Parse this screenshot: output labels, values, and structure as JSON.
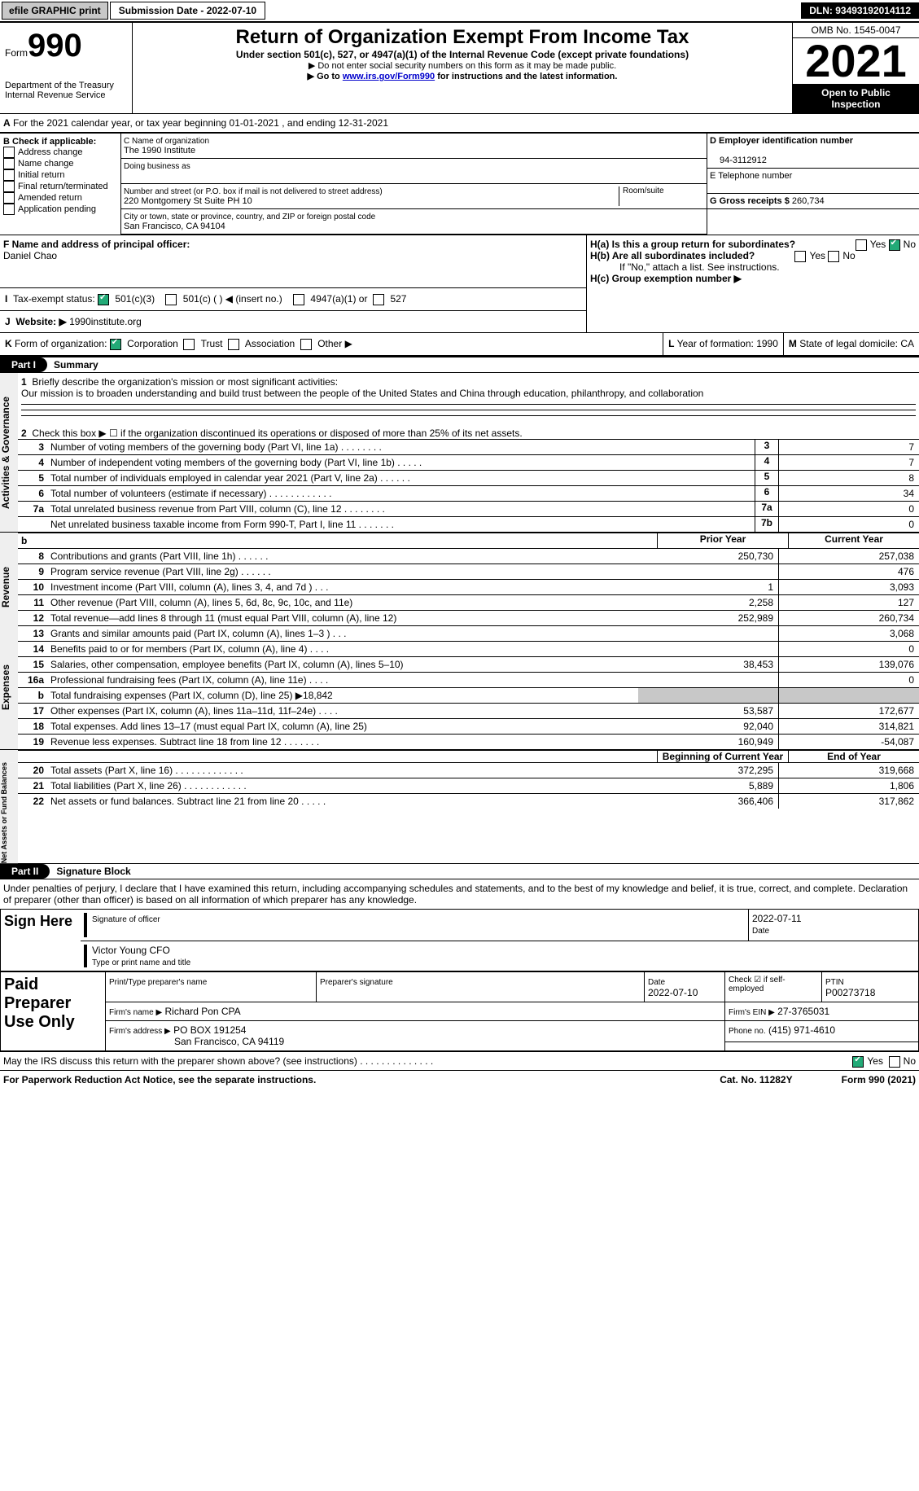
{
  "topbar": {
    "efile": "efile GRAPHIC print",
    "submission": "Submission Date - 2022-07-10",
    "dln": "DLN: 93493192014112"
  },
  "header": {
    "form": "990",
    "form_prefix": "Form",
    "title": "Return of Organization Exempt From Income Tax",
    "sub1": "Under section 501(c), 527, or 4947(a)(1) of the Internal Revenue Code (except private foundations)",
    "sub2": "▶ Do not enter social security numbers on this form as it may be made public.",
    "sub3_pre": "▶ Go to ",
    "sub3_link": "www.irs.gov/Form990",
    "sub3_post": " for instructions and the latest information.",
    "dept": "Department of the Treasury",
    "irs": "Internal Revenue Service",
    "omb": "OMB No. 1545-0047",
    "year": "2021",
    "inspect": "Open to Public Inspection"
  },
  "A": {
    "text": "For the 2021 calendar year, or tax year beginning 01-01-2021   , and ending 12-31-2021"
  },
  "B": {
    "label": "B Check if applicable:",
    "opts": [
      "Address change",
      "Name change",
      "Initial return",
      "Final return/terminated",
      "Amended return",
      "Application pending"
    ]
  },
  "C": {
    "name_label": "C Name of organization",
    "name": "The 1990 Institute",
    "dba_label": "Doing business as",
    "dba": "",
    "street_label": "Number and street (or P.O. box if mail is not delivered to street address)",
    "room_label": "Room/suite",
    "street": "220 Montgomery St Suite PH 10",
    "city_label": "City or town, state or province, country, and ZIP or foreign postal code",
    "city": "San Francisco, CA  94104"
  },
  "D": {
    "label": "D Employer identification number",
    "val": "94-3112912"
  },
  "E": {
    "label": "E Telephone number",
    "val": ""
  },
  "G": {
    "label": "G Gross receipts $",
    "val": "260,734"
  },
  "F": {
    "label": "F  Name and address of principal officer:",
    "name": "Daniel Chao"
  },
  "H": {
    "a": "H(a)  Is this a group return for subordinates?",
    "b": "H(b)  Are all subordinates included?",
    "note": "If \"No,\" attach a list. See instructions.",
    "c": "H(c)  Group exemption number ▶"
  },
  "I": {
    "label": "Tax-exempt status:",
    "c3": "501(c)(3)",
    "c": "501(c) (  ) ◀ (insert no.)",
    "a47": "4947(a)(1) or",
    "s527": "527"
  },
  "J": {
    "label": "Website: ▶",
    "val": "1990institute.org"
  },
  "K": {
    "label": "Form of organization:",
    "opts": [
      "Corporation",
      "Trust",
      "Association",
      "Other ▶"
    ]
  },
  "L": {
    "label": "Year of formation:",
    "val": "1990"
  },
  "M": {
    "label": "State of legal domicile:",
    "val": "CA"
  },
  "part1": {
    "label": "Part I",
    "title": "Summary",
    "l1": {
      "label": "Briefly describe the organization's mission or most significant activities:",
      "text": "Our mission is to broaden understanding and build trust between the people of the United States and China through education, philanthropy, and collaboration"
    },
    "l2": "Check this box ▶ ☐  if the organization discontinued its operations or disposed of more than 25% of its net assets.",
    "rows": [
      {
        "n": "3",
        "t": "Number of voting members of the governing body (Part VI, line 1a)  .   .   .   .   .   .   .   .",
        "b": "3",
        "v": "7"
      },
      {
        "n": "4",
        "t": "Number of independent voting members of the governing body (Part VI, line 1b)  .   .   .   .   .",
        "b": "4",
        "v": "7"
      },
      {
        "n": "5",
        "t": "Total number of individuals employed in calendar year 2021 (Part V, line 2a)  .   .   .   .   .   .",
        "b": "5",
        "v": "8"
      },
      {
        "n": "6",
        "t": "Total number of volunteers (estimate if necessary)   .   .   .   .   .   .   .   .   .   .   .   .",
        "b": "6",
        "v": "34"
      },
      {
        "n": "7a",
        "t": "Total unrelated business revenue from Part VIII, column (C), line 12   .   .   .   .   .   .   .   .",
        "b": "7a",
        "v": "0"
      },
      {
        "n": "",
        "t": "Net unrelated business taxable income from Form 990-T, Part I, line 11  .   .   .   .   .   .   .",
        "b": "7b",
        "v": "0"
      }
    ],
    "colhdr": {
      "prior": "Prior Year",
      "current": "Current Year"
    },
    "rev": [
      {
        "n": "8",
        "t": "Contributions and grants (Part VIII, line 1h)   .   .   .   .   .   .",
        "p": "250,730",
        "c": "257,038"
      },
      {
        "n": "9",
        "t": "Program service revenue (Part VIII, line 2g)   .   .   .   .   .   .",
        "p": "",
        "c": "476"
      },
      {
        "n": "10",
        "t": "Investment income (Part VIII, column (A), lines 3, 4, and 7d )   .   .   .",
        "p": "1",
        "c": "3,093"
      },
      {
        "n": "11",
        "t": "Other revenue (Part VIII, column (A), lines 5, 6d, 8c, 9c, 10c, and 11e)",
        "p": "2,258",
        "c": "127"
      },
      {
        "n": "12",
        "t": "Total revenue—add lines 8 through 11 (must equal Part VIII, column (A), line 12)",
        "p": "252,989",
        "c": "260,734"
      }
    ],
    "exp": [
      {
        "n": "13",
        "t": "Grants and similar amounts paid (Part IX, column (A), lines 1–3 )   .   .   .",
        "p": "",
        "c": "3,068"
      },
      {
        "n": "14",
        "t": "Benefits paid to or for members (Part IX, column (A), line 4)   .   .   .   .",
        "p": "",
        "c": "0"
      },
      {
        "n": "15",
        "t": "Salaries, other compensation, employee benefits (Part IX, column (A), lines 5–10)",
        "p": "38,453",
        "c": "139,076"
      },
      {
        "n": "16a",
        "t": "Professional fundraising fees (Part IX, column (A), line 11e)   .   .   .   .",
        "p": "",
        "c": "0"
      },
      {
        "n": "b",
        "t": "Total fundraising expenses (Part IX, column (D), line 25) ▶18,842",
        "p": "shade",
        "c": "shade"
      },
      {
        "n": "17",
        "t": "Other expenses (Part IX, column (A), lines 11a–11d, 11f–24e)   .   .   .   .",
        "p": "53,587",
        "c": "172,677"
      },
      {
        "n": "18",
        "t": "Total expenses. Add lines 13–17 (must equal Part IX, column (A), line 25)",
        "p": "92,040",
        "c": "314,821"
      },
      {
        "n": "19",
        "t": "Revenue less expenses. Subtract line 18 from line 12  .   .   .   .   .   .   .",
        "p": "160,949",
        "c": "-54,087"
      }
    ],
    "nethdr": {
      "b": "Beginning of Current Year",
      "e": "End of Year"
    },
    "net": [
      {
        "n": "20",
        "t": "Total assets (Part X, line 16)  .   .   .   .   .   .   .   .   .   .   .   .   .",
        "p": "372,295",
        "c": "319,668"
      },
      {
        "n": "21",
        "t": "Total liabilities (Part X, line 26)  .   .   .   .   .   .   .   .   .   .   .   .",
        "p": "5,889",
        "c": "1,806"
      },
      {
        "n": "22",
        "t": "Net assets or fund balances. Subtract line 21 from line 20   .   .   .   .   .",
        "p": "366,406",
        "c": "317,862"
      }
    ],
    "sidebars": {
      "ag": "Activities & Governance",
      "rev": "Revenue",
      "exp": "Expenses",
      "net": "Net Assets or Fund Balances"
    }
  },
  "part2": {
    "label": "Part II",
    "title": "Signature Block",
    "decl": "Under penalties of perjury, I declare that I have examined this return, including accompanying schedules and statements, and to the best of my knowledge and belief, it is true, correct, and complete. Declaration of preparer (other than officer) is based on all information of which preparer has any knowledge.",
    "sign_here": "Sign Here",
    "sig_officer": "Signature of officer",
    "sig_date": "2022-07-11",
    "date_label": "Date",
    "typed_name": "Victor Young CFO",
    "typed_label": "Type or print name and title",
    "paid": "Paid Preparer Use Only",
    "prep_name_label": "Print/Type preparer's name",
    "prep_sig_label": "Preparer's signature",
    "prep_date_label": "Date",
    "prep_date": "2022-07-10",
    "check_label": "Check ☑ if self-employed",
    "ptin_label": "PTIN",
    "ptin": "P00273718",
    "firm_name_label": "Firm's name   ▶",
    "firm_name": "Richard Pon CPA",
    "firm_ein_label": "Firm's EIN ▶",
    "firm_ein": "27-3765031",
    "firm_addr_label": "Firm's address ▶",
    "firm_addr1": "PO BOX 191254",
    "firm_addr2": "San Francisco, CA  94119",
    "phone_label": "Phone no.",
    "phone": "(415) 971-4610",
    "discuss": "May the IRS discuss this return with the preparer shown above? (see instructions)   .   .   .   .   .   .   .   .   .   .   .   .   .   .",
    "yes": "Yes",
    "no": "No"
  },
  "footer": {
    "pra": "For Paperwork Reduction Act Notice, see the separate instructions.",
    "cat": "Cat. No. 11282Y",
    "form": "Form 990 (2021)"
  }
}
